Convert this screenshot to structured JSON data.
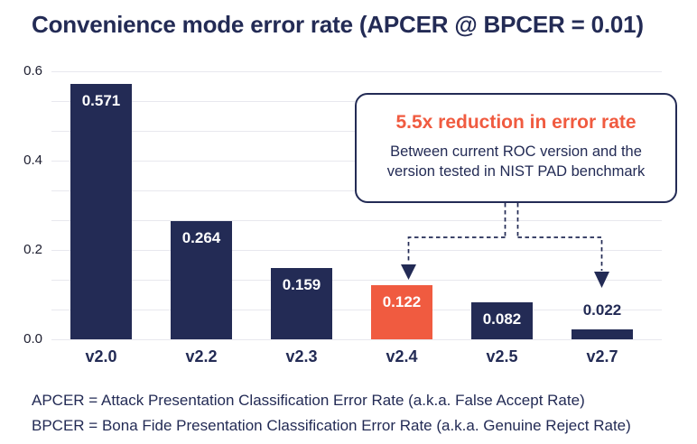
{
  "title": "Convenience mode error rate (APCER @ BPCER = 0.01)",
  "colors": {
    "navy": "#232B55",
    "orange": "#F05B40",
    "gridline": "#E8E8EE",
    "tick_label": "#1B1C2E",
    "value_label_inside": "#FFFFFF",
    "background": "#FFFFFF"
  },
  "chart_data": {
    "type": "bar",
    "title": "Convenience mode error rate (APCER @ BPCER = 0.01)",
    "categories": [
      "v2.0",
      "v2.2",
      "v2.3",
      "v2.4",
      "v2.5",
      "v2.7"
    ],
    "values": [
      0.571,
      0.264,
      0.159,
      0.122,
      0.082,
      0.022
    ],
    "value_labels": [
      "0.571",
      "0.264",
      "0.159",
      "0.122",
      "0.082",
      "0.022"
    ],
    "bar_colors": [
      "navy",
      "navy",
      "navy",
      "orange",
      "navy",
      "navy"
    ],
    "highlight_category": "v2.4",
    "xlabel": "",
    "ylabel": "",
    "ylim": [
      0,
      0.6
    ],
    "yticks": [
      0.0,
      0.2,
      0.4,
      0.6
    ],
    "ytick_labels": [
      "0.0",
      "0.2",
      "0.4",
      "0.6"
    ],
    "grid": "horizontal gridlines, each 0.2 interval subdivided in thirds",
    "legend": "none"
  },
  "callout": {
    "title": "5.5x reduction in error rate",
    "body": "Between current ROC version and the version tested in NIST PAD benchmark",
    "arrow_targets": [
      "v2.4",
      "v2.7"
    ]
  },
  "footnotes": [
    "APCER = Attack Presentation Classification Error Rate (a.k.a. False Accept Rate)",
    "BPCER = Bona Fide Presentation Classification Error Rate (a.k.a. Genuine Reject Rate)"
  ]
}
